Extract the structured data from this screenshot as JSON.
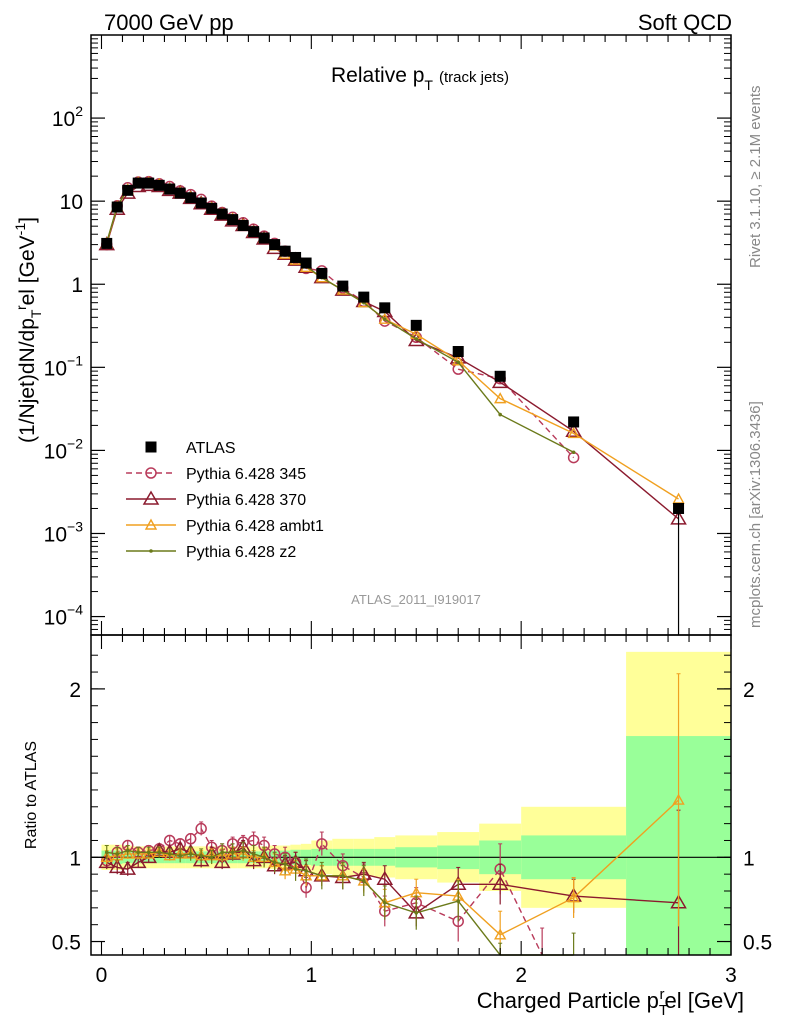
{
  "header": {
    "left_title": "7000 GeV pp",
    "right_title": "Soft QCD",
    "plot_title_main": "Relative p",
    "plot_title_sub": "T",
    "plot_title_extra": "(track jets)",
    "analysis_id": "ATLAS_2011_I919017",
    "side_note_top": "Rivet 3.1.10, ≥ 2.1M events",
    "side_note_bottom": "mcplots.cern.ch [arXiv:1306.3436]"
  },
  "chart_data": [
    {
      "type": "scatter",
      "ylabel": "(1/Njet)dN/dp_T^rel [GeV^-1]",
      "yscale": "log",
      "xlim": [
        -0.05,
        3.0
      ],
      "ylim": [
        6e-05,
        1000
      ],
      "yticks": [
        {
          "value": 0.0001,
          "label": "10",
          "exp": "−4"
        },
        {
          "value": 0.001,
          "label": "10",
          "exp": "−3"
        },
        {
          "value": 0.01,
          "label": "10",
          "exp": "−2"
        },
        {
          "value": 0.1,
          "label": "10",
          "exp": "−1"
        },
        {
          "value": 1,
          "label": "1",
          "exp": ""
        },
        {
          "value": 10,
          "label": "10",
          "exp": ""
        },
        {
          "value": 100,
          "label": "10",
          "exp": "2"
        }
      ],
      "legend_position": "lower-left",
      "series": [
        {
          "name": "ATLAS",
          "color": "#000000",
          "marker": "square",
          "x": [
            0.025,
            0.075,
            0.125,
            0.175,
            0.225,
            0.275,
            0.325,
            0.375,
            0.425,
            0.475,
            0.525,
            0.575,
            0.625,
            0.675,
            0.725,
            0.775,
            0.825,
            0.875,
            0.925,
            0.975,
            1.05,
            1.15,
            1.25,
            1.35,
            1.5,
            1.7,
            1.9,
            2.25,
            2.75
          ],
          "y": [
            3.1,
            8.5,
            13.5,
            16.5,
            16.5,
            15.5,
            14.0,
            12.5,
            11.0,
            9.5,
            8.2,
            7.0,
            6.0,
            5.1,
            4.3,
            3.6,
            3.0,
            2.5,
            2.1,
            1.8,
            1.35,
            0.95,
            0.7,
            0.52,
            0.32,
            0.155,
            0.078,
            0.022,
            0.002
          ]
        },
        {
          "name": "Pythia 6.428 345",
          "color": "#b83a5a",
          "marker": "circle",
          "dash": true,
          "x": [
            0.025,
            0.075,
            0.125,
            0.175,
            0.225,
            0.275,
            0.325,
            0.375,
            0.425,
            0.475,
            0.525,
            0.575,
            0.625,
            0.675,
            0.725,
            0.775,
            0.825,
            0.875,
            0.925,
            0.975,
            1.05,
            1.15,
            1.25,
            1.35,
            1.5,
            1.7,
            1.9,
            2.25
          ],
          "y": [
            3.0,
            8.8,
            14.5,
            17.0,
            17.2,
            16.2,
            15.0,
            13.3,
            12.0,
            10.5,
            8.7,
            7.3,
            6.4,
            5.5,
            4.6,
            3.8,
            3.1,
            2.5,
            2.05,
            1.55,
            1.45,
            0.9,
            0.62,
            0.36,
            0.23,
            0.095,
            0.073,
            0.0082
          ]
        },
        {
          "name": "Pythia 6.428 370",
          "color": "#8b1a2e",
          "marker": "triangle-open",
          "x": [
            0.025,
            0.075,
            0.125,
            0.175,
            0.225,
            0.275,
            0.325,
            0.375,
            0.425,
            0.475,
            0.525,
            0.575,
            0.625,
            0.675,
            0.725,
            0.775,
            0.825,
            0.875,
            0.925,
            0.975,
            1.05,
            1.15,
            1.25,
            1.35,
            1.5,
            1.7,
            1.9,
            2.25,
            2.75
          ],
          "y": [
            3.0,
            8.0,
            12.5,
            15.0,
            15.5,
            15.0,
            13.5,
            12.5,
            10.8,
            9.3,
            8.0,
            6.8,
            5.8,
            5.1,
            4.2,
            3.5,
            2.7,
            2.3,
            1.95,
            1.6,
            1.2,
            0.85,
            0.62,
            0.47,
            0.21,
            0.13,
            0.066,
            0.017,
            0.0015
          ]
        },
        {
          "name": "Pythia 6.428 ambt1",
          "color": "#f0a020",
          "marker": "triangle-open-small",
          "x": [
            0.025,
            0.075,
            0.125,
            0.175,
            0.225,
            0.275,
            0.325,
            0.375,
            0.425,
            0.475,
            0.525,
            0.575,
            0.625,
            0.675,
            0.725,
            0.775,
            0.825,
            0.875,
            0.925,
            0.975,
            1.05,
            1.15,
            1.25,
            1.35,
            1.5,
            1.7,
            1.9,
            2.25,
            2.75
          ],
          "y": [
            3.1,
            8.6,
            13.8,
            16.8,
            16.8,
            16.0,
            14.2,
            12.8,
            11.2,
            9.6,
            8.3,
            7.1,
            6.1,
            5.2,
            4.3,
            3.6,
            2.9,
            2.3,
            1.95,
            1.6,
            1.2,
            0.85,
            0.6,
            0.38,
            0.25,
            0.12,
            0.042,
            0.016,
            0.0026
          ]
        },
        {
          "name": "Pythia 6.428 z2",
          "color": "#6b7a1a",
          "marker": "dot",
          "x": [
            0.025,
            0.075,
            0.125,
            0.175,
            0.225,
            0.275,
            0.325,
            0.375,
            0.425,
            0.475,
            0.525,
            0.575,
            0.625,
            0.675,
            0.725,
            0.775,
            0.825,
            0.875,
            0.925,
            0.975,
            1.05,
            1.15,
            1.25,
            1.35,
            1.5,
            1.7,
            1.9,
            2.25
          ],
          "y": [
            3.2,
            8.7,
            14.0,
            17.0,
            17.0,
            16.0,
            14.3,
            12.6,
            11.2,
            9.6,
            8.2,
            7.2,
            6.2,
            5.3,
            4.4,
            3.6,
            2.9,
            2.4,
            1.95,
            1.65,
            1.2,
            0.85,
            0.6,
            0.38,
            0.22,
            0.115,
            0.027,
            0.0095
          ]
        }
      ]
    },
    {
      "type": "line",
      "ylabel": "Ratio to ATLAS",
      "xlabel": "Charged Particle p_T^rel [GeV]",
      "xlim": [
        -0.05,
        3.0
      ],
      "ylim": [
        0.42,
        2.32
      ],
      "xticks": [
        0,
        1,
        2,
        3
      ],
      "yticks": [
        0.5,
        1,
        2
      ],
      "bins": [
        {
          "lo": 0.0,
          "hi": 0.05,
          "in": 0.04,
          "out": 0.075
        },
        {
          "lo": 0.05,
          "hi": 0.1,
          "in": 0.04,
          "out": 0.075
        },
        {
          "lo": 0.1,
          "hi": 0.15,
          "in": 0.035,
          "out": 0.07
        },
        {
          "lo": 0.15,
          "hi": 0.2,
          "in": 0.035,
          "out": 0.065
        },
        {
          "lo": 0.2,
          "hi": 0.25,
          "in": 0.035,
          "out": 0.065
        },
        {
          "lo": 0.25,
          "hi": 0.3,
          "in": 0.035,
          "out": 0.065
        },
        {
          "lo": 0.3,
          "hi": 0.35,
          "in": 0.035,
          "out": 0.065
        },
        {
          "lo": 0.35,
          "hi": 0.4,
          "in": 0.035,
          "out": 0.065
        },
        {
          "lo": 0.4,
          "hi": 0.45,
          "in": 0.035,
          "out": 0.065
        },
        {
          "lo": 0.45,
          "hi": 0.5,
          "in": 0.035,
          "out": 0.065
        },
        {
          "lo": 0.5,
          "hi": 0.55,
          "in": 0.035,
          "out": 0.065
        },
        {
          "lo": 0.55,
          "hi": 0.6,
          "in": 0.035,
          "out": 0.065
        },
        {
          "lo": 0.6,
          "hi": 0.65,
          "in": 0.035,
          "out": 0.065
        },
        {
          "lo": 0.65,
          "hi": 0.7,
          "in": 0.035,
          "out": 0.065
        },
        {
          "lo": 0.7,
          "hi": 0.75,
          "in": 0.035,
          "out": 0.065
        },
        {
          "lo": 0.75,
          "hi": 0.8,
          "in": 0.035,
          "out": 0.065
        },
        {
          "lo": 0.8,
          "hi": 0.85,
          "in": 0.04,
          "out": 0.07
        },
        {
          "lo": 0.85,
          "hi": 0.9,
          "in": 0.04,
          "out": 0.07
        },
        {
          "lo": 0.9,
          "hi": 0.95,
          "in": 0.045,
          "out": 0.075
        },
        {
          "lo": 0.95,
          "hi": 1.0,
          "in": 0.045,
          "out": 0.08
        },
        {
          "lo": 1.0,
          "hi": 1.1,
          "in": 0.05,
          "out": 0.1
        },
        {
          "lo": 1.1,
          "hi": 1.2,
          "in": 0.05,
          "out": 0.11
        },
        {
          "lo": 1.2,
          "hi": 1.3,
          "in": 0.05,
          "out": 0.11
        },
        {
          "lo": 1.3,
          "hi": 1.4,
          "in": 0.05,
          "out": 0.12
        },
        {
          "lo": 1.4,
          "hi": 1.6,
          "in": 0.06,
          "out": 0.13
        },
        {
          "lo": 1.6,
          "hi": 1.8,
          "in": 0.07,
          "out": 0.15
        },
        {
          "lo": 1.8,
          "hi": 2.0,
          "in": 0.1,
          "out": 0.2
        },
        {
          "lo": 2.0,
          "hi": 2.5,
          "in": 0.13,
          "out": 0.3
        },
        {
          "lo": 2.5,
          "hi": 3.0,
          "in": 0.72,
          "out": 1.22
        }
      ],
      "band_colors": {
        "inner": "#99ff99",
        "outer": "#ffff99"
      },
      "series": [
        {
          "name": "Pythia 6.428 345",
          "color": "#b83a5a",
          "marker": "circle",
          "dash": true,
          "x": [
            0.025,
            0.075,
            0.125,
            0.175,
            0.225,
            0.275,
            0.325,
            0.375,
            0.425,
            0.475,
            0.525,
            0.575,
            0.625,
            0.675,
            0.725,
            0.775,
            0.825,
            0.875,
            0.925,
            0.975,
            1.05,
            1.15,
            1.25,
            1.35,
            1.5,
            1.7,
            1.9,
            2.1
          ],
          "y": [
            0.98,
            1.03,
            1.07,
            1.03,
            1.04,
            1.05,
            1.1,
            1.08,
            1.11,
            1.17,
            1.06,
            1.04,
            1.08,
            1.09,
            1.1,
            1.07,
            1.02,
            1.0,
            0.97,
            0.82,
            1.08,
            0.95,
            0.88,
            0.68,
            0.73,
            0.62,
            0.93,
            0.38
          ],
          "err": [
            0.04,
            0.04,
            0.03,
            0.03,
            0.03,
            0.03,
            0.03,
            0.03,
            0.03,
            0.04,
            0.04,
            0.04,
            0.04,
            0.04,
            0.05,
            0.05,
            0.05,
            0.06,
            0.06,
            0.06,
            0.07,
            0.07,
            0.08,
            0.09,
            0.09,
            0.12,
            0.15,
            0.2
          ]
        },
        {
          "name": "Pythia 6.428 370",
          "color": "#8b1a2e",
          "marker": "triangle-open",
          "x": [
            0.025,
            0.075,
            0.125,
            0.175,
            0.225,
            0.275,
            0.325,
            0.375,
            0.425,
            0.475,
            0.525,
            0.575,
            0.625,
            0.675,
            0.725,
            0.775,
            0.825,
            0.875,
            0.925,
            0.975,
            1.05,
            1.15,
            1.25,
            1.35,
            1.5,
            1.7,
            1.9,
            2.25,
            2.75
          ],
          "y": [
            0.97,
            0.94,
            0.93,
            0.97,
            1.0,
            1.04,
            1.03,
            1.05,
            1.03,
            0.98,
            1.02,
            0.97,
            1.02,
            1.06,
            0.98,
            1.0,
            0.95,
            0.96,
            0.97,
            0.92,
            0.89,
            0.88,
            0.9,
            0.87,
            0.67,
            0.84,
            0.84,
            0.77,
            0.73
          ],
          "err": [
            0.04,
            0.04,
            0.04,
            0.03,
            0.03,
            0.03,
            0.03,
            0.03,
            0.03,
            0.04,
            0.04,
            0.04,
            0.04,
            0.04,
            0.05,
            0.05,
            0.05,
            0.05,
            0.06,
            0.06,
            0.06,
            0.07,
            0.07,
            0.08,
            0.08,
            0.1,
            0.12,
            0.1,
            0.55
          ]
        },
        {
          "name": "Pythia 6.428 ambt1",
          "color": "#f0a020",
          "marker": "triangle-open-small",
          "x": [
            0.025,
            0.075,
            0.125,
            0.175,
            0.225,
            0.275,
            0.325,
            0.375,
            0.425,
            0.475,
            0.525,
            0.575,
            0.625,
            0.675,
            0.725,
            0.775,
            0.825,
            0.875,
            0.925,
            0.975,
            1.05,
            1.15,
            1.25,
            1.35,
            1.5,
            1.7,
            1.9,
            2.25,
            2.75
          ],
          "y": [
            1.0,
            1.01,
            1.02,
            1.02,
            1.02,
            1.03,
            1.01,
            1.02,
            1.02,
            1.01,
            1.01,
            1.01,
            1.02,
            1.02,
            1.0,
            1.0,
            0.97,
            0.92,
            0.93,
            0.89,
            0.89,
            0.89,
            0.86,
            0.73,
            0.79,
            0.77,
            0.54,
            0.76,
            1.34
          ],
          "err": [
            0.04,
            0.04,
            0.03,
            0.03,
            0.03,
            0.03,
            0.03,
            0.03,
            0.03,
            0.03,
            0.04,
            0.04,
            0.04,
            0.04,
            0.04,
            0.05,
            0.05,
            0.05,
            0.05,
            0.06,
            0.06,
            0.07,
            0.07,
            0.08,
            0.08,
            0.1,
            0.14,
            0.12,
            0.75
          ]
        },
        {
          "name": "Pythia 6.428 z2",
          "color": "#6b7a1a",
          "marker": "dot",
          "x": [
            0.025,
            0.075,
            0.125,
            0.175,
            0.225,
            0.275,
            0.325,
            0.375,
            0.425,
            0.475,
            0.525,
            0.575,
            0.625,
            0.675,
            0.725,
            0.775,
            0.825,
            0.875,
            0.925,
            0.975,
            1.05,
            1.15,
            1.25,
            1.35,
            1.5,
            1.7,
            1.9,
            2.25
          ],
          "y": [
            1.03,
            1.02,
            1.04,
            1.03,
            1.03,
            1.03,
            1.02,
            1.01,
            1.02,
            1.01,
            1.0,
            1.03,
            1.03,
            1.04,
            1.02,
            1.0,
            0.97,
            0.96,
            0.93,
            0.92,
            0.89,
            0.89,
            0.86,
            0.73,
            0.67,
            0.74,
            0.34,
            0.4
          ],
          "err": [
            0.04,
            0.04,
            0.03,
            0.03,
            0.03,
            0.03,
            0.03,
            0.04,
            0.04,
            0.04,
            0.04,
            0.05,
            0.05,
            0.05,
            0.05,
            0.06,
            0.06,
            0.06,
            0.07,
            0.07,
            0.08,
            0.08,
            0.09,
            0.1,
            0.1,
            0.12,
            0.15,
            0.15
          ]
        }
      ]
    }
  ]
}
